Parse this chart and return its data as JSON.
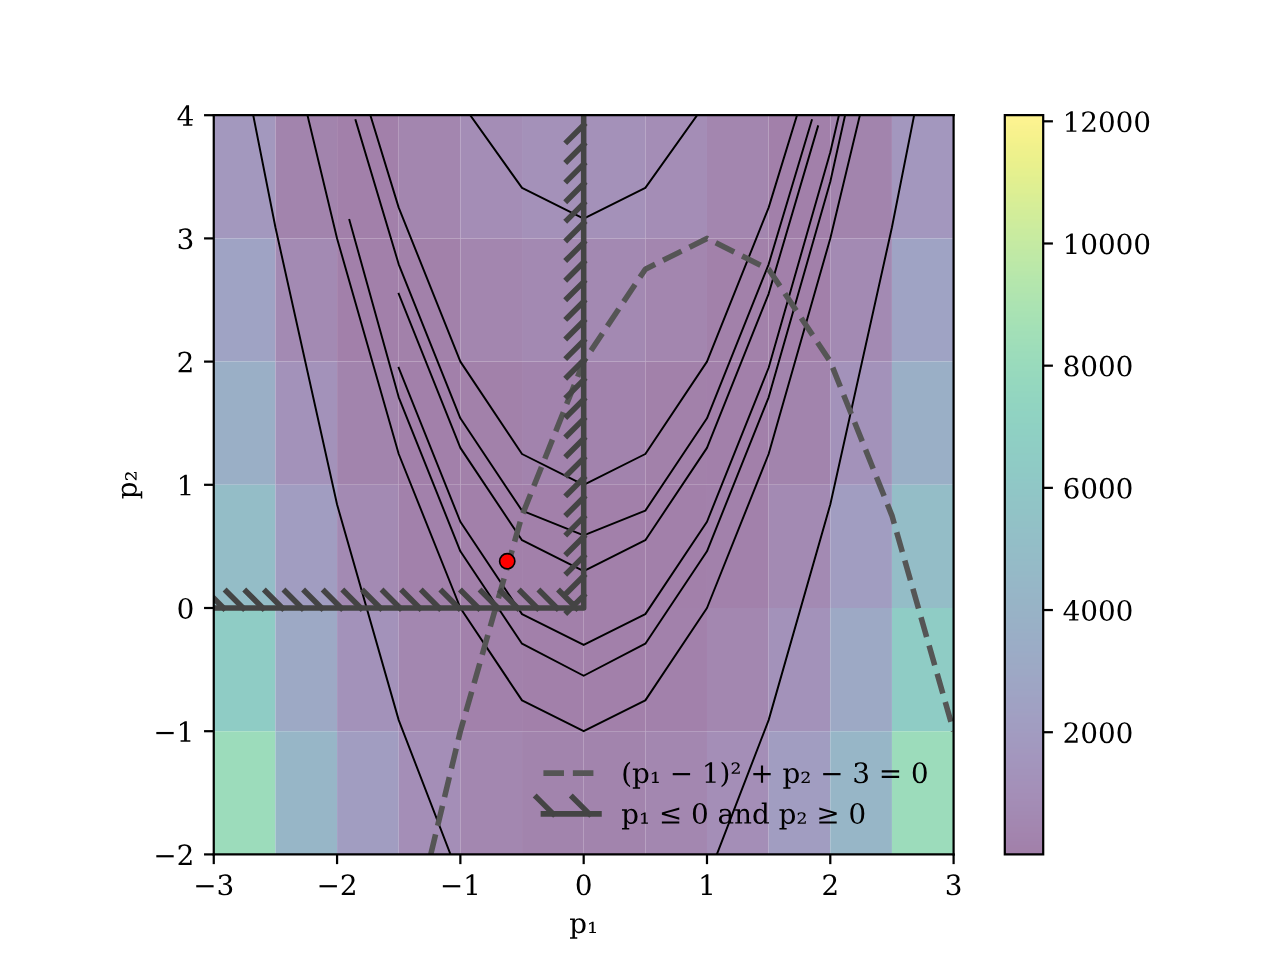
{
  "chart_data": {
    "type": "heatmap",
    "xlabel": "p₁",
    "ylabel": "p₂",
    "xlim": [
      -3,
      3
    ],
    "ylim": [
      -2,
      4
    ],
    "xticks": [
      -3,
      -2,
      -1,
      0,
      1,
      2,
      3
    ],
    "yticks": [
      -2,
      -1,
      0,
      1,
      2,
      3,
      4
    ],
    "cells": [
      [
        1700,
        250,
        30,
        380,
        870,
        1180,
        1180,
        860,
        380,
        20,
        240,
        1650
      ],
      [
        2580,
        670,
        40,
        90,
        380,
        600,
        600,
        380,
        90,
        30,
        660,
        2560
      ],
      [
        3680,
        1270,
        240,
        5,
        90,
        210,
        210,
        90,
        1,
        240,
        1270,
        3680
      ],
      [
        4990,
        2080,
        660,
        120,
        4,
        20,
        20,
        1,
        110,
        660,
        2080,
        4990
      ],
      [
        6500,
        3090,
        1270,
        430,
        110,
        30,
        30,
        110,
        430,
        1270,
        3090,
        6500
      ],
      [
        8210,
        4310,
        2080,
        940,
        430,
        240,
        240,
        430,
        940,
        2080,
        4310,
        8210
      ]
    ],
    "clim": [
      0,
      12100
    ],
    "cticks": [
      2000,
      4000,
      6000,
      8000,
      10000,
      12000
    ],
    "series": [
      {
        "type": "line",
        "color": "#000000",
        "x": [
          -2.68,
          -2.5,
          -2,
          -1.5,
          -1.08
        ],
        "values": [
          4,
          3.09,
          0.84,
          -0.91,
          -2
        ]
      },
      {
        "type": "line",
        "color": "#000000",
        "x": [
          1.08,
          1.5,
          2,
          2.5,
          2.68
        ],
        "values": [
          -2,
          -0.91,
          0.84,
          3.09,
          4
        ]
      },
      {
        "type": "line",
        "color": "#000000",
        "x": [
          -0.92,
          -0.5,
          0,
          0.5,
          0.92
        ],
        "values": [
          4,
          3.41,
          3.16,
          3.41,
          4
        ]
      },
      {
        "type": "line",
        "color": "#000000",
        "x": [
          -1.73,
          -1.5,
          -1,
          -0.5,
          0,
          0.5,
          1,
          1.5,
          1.73
        ],
        "values": [
          4,
          3.25,
          2,
          1.25,
          1,
          1.25,
          2,
          3.25,
          4
        ]
      },
      {
        "type": "line",
        "color": "#000000",
        "x": [
          -2.24,
          -2,
          -1.5,
          -1,
          -0.5,
          0,
          0.5,
          1,
          1.5,
          2,
          2.24
        ],
        "values": [
          4,
          3,
          1.25,
          0,
          -0.75,
          -1,
          -0.75,
          0,
          1.25,
          3,
          4
        ]
      },
      {
        "type": "line",
        "color": "#000000",
        "x": [
          -1.85,
          -1.5,
          -1,
          -0.5,
          0,
          0.5,
          1,
          1.5,
          1.85
        ],
        "values": [
          3.96,
          2.79,
          1.54,
          0.79,
          0.59,
          0.79,
          1.54,
          2.79,
          3.96
        ]
      },
      {
        "type": "line",
        "color": "#000000",
        "x": [
          -1.9,
          -1.5,
          -1,
          -0.5,
          0,
          0.5,
          1,
          1.5,
          2,
          2.12
        ],
        "values": [
          3.15,
          1.71,
          0.46,
          -0.29,
          -0.55,
          -0.29,
          0.46,
          1.71,
          3.46,
          4
        ]
      },
      {
        "type": "line",
        "color": "#000000",
        "x": [
          -1.5,
          -1,
          -0.5,
          0,
          0.5,
          1,
          1.5,
          1.9
        ],
        "values": [
          2.55,
          1.3,
          0.55,
          0.3,
          0.55,
          1.3,
          2.55,
          3.91
        ]
      },
      {
        "type": "line",
        "color": "#000000",
        "x": [
          -1.5,
          -1,
          -0.5,
          0,
          0.5,
          1,
          1.5,
          2,
          2.07
        ],
        "values": [
          1.95,
          0.7,
          -0.05,
          -0.3,
          -0.05,
          0.7,
          1.95,
          3.7,
          4
        ]
      },
      {
        "type": "line",
        "name": "(p₁ − 1)² + p₂ − 3 = 0",
        "color": "#555555",
        "line_style": "dashed",
        "x": [
          -1.24,
          -1,
          -0.5,
          0,
          0.5,
          1,
          1.5,
          2,
          2.5,
          3
        ],
        "values": [
          -2,
          -1,
          0.75,
          2,
          2.75,
          3,
          2.75,
          2,
          0.75,
          -1
        ]
      },
      {
        "type": "line",
        "name": "p₁ ≤ 0 and p₂ ≥ 0",
        "color": "#444444",
        "line_style": "solid",
        "x": [
          -3,
          0,
          0
        ],
        "values": [
          0,
          0,
          4
        ]
      },
      {
        "type": "scatter",
        "color": "#ff0000",
        "marker": "circle",
        "x": [
          -0.62
        ],
        "values": [
          0.38
        ]
      }
    ],
    "legend": "bottom right",
    "grid": false
  }
}
